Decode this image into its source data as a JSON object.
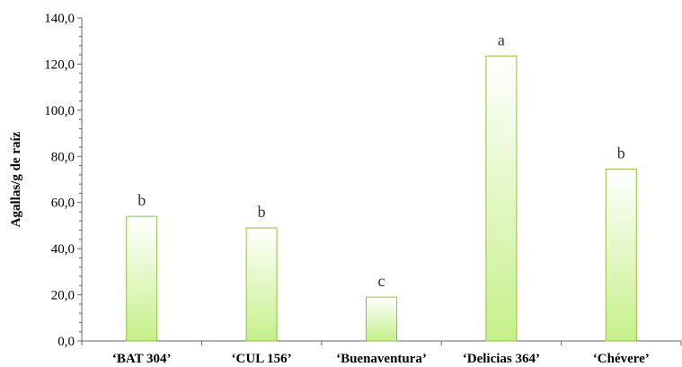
{
  "chart_data": {
    "type": "bar",
    "title": "",
    "xlabel": "",
    "ylabel": "Agallas/g de raíz",
    "categories": [
      "‘BAT 304’",
      "‘CUL 156’",
      "‘Buenaventura’",
      "‘Delicias 364’",
      "‘Chévere’"
    ],
    "values": [
      54.0,
      49.0,
      19.0,
      123.5,
      74.5
    ],
    "significance_letters": [
      "b",
      "b",
      "c",
      "a",
      "b"
    ],
    "ylim": [
      0,
      140
    ],
    "yticks": [
      "0,0",
      "20,0",
      "40,0",
      "60,0",
      "80,0",
      "100,0",
      "120,0",
      "140,0"
    ],
    "grid": false,
    "legend": "none",
    "colors": {
      "bar_fill_top": "#ffffff",
      "bar_fill_bottom": "#c6f08a",
      "bar_stroke": "#8fc23f",
      "axis": "#666666"
    }
  }
}
